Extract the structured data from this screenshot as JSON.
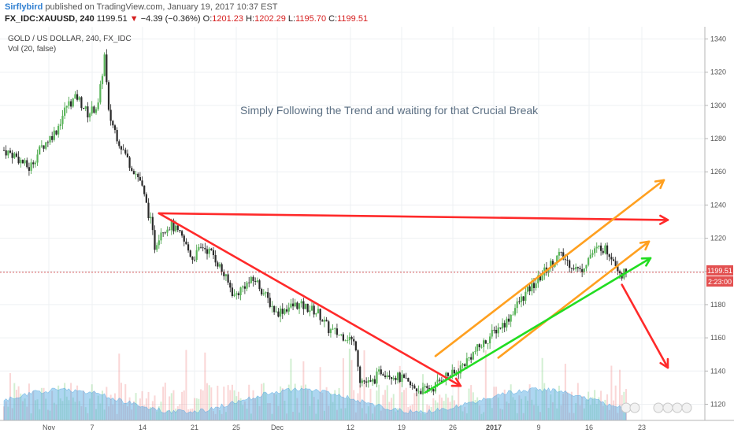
{
  "header": {
    "author": "Sirflybird",
    "published": "published on TradingView.com, January 19, 2017 10:37 EST",
    "symbol": "FX_IDC:XAUUSD, 240",
    "last": "1199.51",
    "change": "−4.39 (−0.36%)",
    "open_label": "O:",
    "open": "1201.23",
    "high_label": "H:",
    "high": "1202.29",
    "low_label": "L:",
    "low": "1195.70",
    "close_label": "C:",
    "close": "1199.51"
  },
  "chart_data": {
    "type": "candlestick",
    "title": "GOLD / US DOLLAR, 240, FX_IDC",
    "volume_label": "Vol (20, false)",
    "annotation": "Simply Following the Trend and waiting for that Crucial Break",
    "ylim": [
      1115,
      1345
    ],
    "y_ticks": [
      1120,
      1140,
      1160,
      1180,
      1200,
      1220,
      1240,
      1260,
      1280,
      1300,
      1320,
      1340
    ],
    "x_tick_labels": [
      "Nov",
      "7",
      "14",
      "21",
      "25",
      "Dec",
      "12",
      "19",
      "26",
      "2017",
      "9",
      "16",
      "23"
    ],
    "current_price": "1199.51",
    "countdown": "2:23:00",
    "price_anchors": [
      [
        0,
        1273
      ],
      [
        5,
        1270
      ],
      [
        12,
        1262
      ],
      [
        18,
        1275
      ],
      [
        25,
        1285
      ],
      [
        30,
        1300
      ],
      [
        35,
        1305
      ],
      [
        40,
        1295
      ],
      [
        45,
        1300
      ],
      [
        48,
        1330
      ],
      [
        50,
        1295
      ],
      [
        55,
        1278
      ],
      [
        60,
        1265
      ],
      [
        65,
        1255
      ],
      [
        70,
        1230
      ],
      [
        72,
        1215
      ],
      [
        75,
        1225
      ],
      [
        80,
        1228
      ],
      [
        85,
        1220
      ],
      [
        90,
        1208
      ],
      [
        95,
        1215
      ],
      [
        100,
        1210
      ],
      [
        105,
        1198
      ],
      [
        110,
        1185
      ],
      [
        115,
        1192
      ],
      [
        120,
        1195
      ],
      [
        125,
        1185
      ],
      [
        130,
        1175
      ],
      [
        135,
        1178
      ],
      [
        140,
        1180
      ],
      [
        145,
        1178
      ],
      [
        150,
        1175
      ],
      [
        155,
        1165
      ],
      [
        160,
        1162
      ],
      [
        165,
        1160
      ],
      [
        168,
        1155
      ],
      [
        170,
        1135
      ],
      [
        175,
        1132
      ],
      [
        180,
        1140
      ],
      [
        185,
        1138
      ],
      [
        190,
        1135
      ],
      [
        195,
        1130
      ],
      [
        200,
        1128
      ],
      [
        205,
        1130
      ],
      [
        210,
        1137
      ],
      [
        215,
        1138
      ],
      [
        220,
        1145
      ],
      [
        225,
        1152
      ],
      [
        230,
        1158
      ],
      [
        235,
        1165
      ],
      [
        240,
        1170
      ],
      [
        245,
        1180
      ],
      [
        250,
        1188
      ],
      [
        255,
        1195
      ],
      [
        260,
        1203
      ],
      [
        265,
        1210
      ],
      [
        270,
        1205
      ],
      [
        275,
        1200
      ],
      [
        280,
        1210
      ],
      [
        285,
        1215
      ],
      [
        290,
        1210
      ],
      [
        295,
        1198
      ],
      [
        297,
        1199.5
      ]
    ],
    "trend_lines": [
      {
        "name": "red-resistance-line",
        "color": "#ff2a2a",
        "points": [
          [
            74,
            1235
          ],
          [
            152,
            1233
          ]
        ],
        "arrow_end": [
          190,
          1231
        ]
      },
      {
        "name": "red-downtrend-line",
        "color": "#ff2a2a",
        "points": [
          [
            74,
            1235
          ],
          [
            218,
            1131
          ]
        ]
      },
      {
        "name": "orange-upper-channel",
        "color": "#ffa020",
        "points": [
          [
            206,
            1149
          ],
          [
            313,
            1255
          ]
        ]
      },
      {
        "name": "orange-lower-channel",
        "color": "#ffa020",
        "points": [
          [
            236,
            1148
          ],
          [
            304,
            1218
          ]
        ]
      },
      {
        "name": "green-support-line",
        "color": "#22dd22",
        "points": [
          [
            201,
            1127
          ],
          [
            306,
            1208
          ]
        ]
      },
      {
        "name": "red-breakdown-arrow",
        "color": "#ff2a2a",
        "points": [
          [
            295,
            1192
          ],
          [
            313,
            1142
          ]
        ]
      }
    ]
  }
}
